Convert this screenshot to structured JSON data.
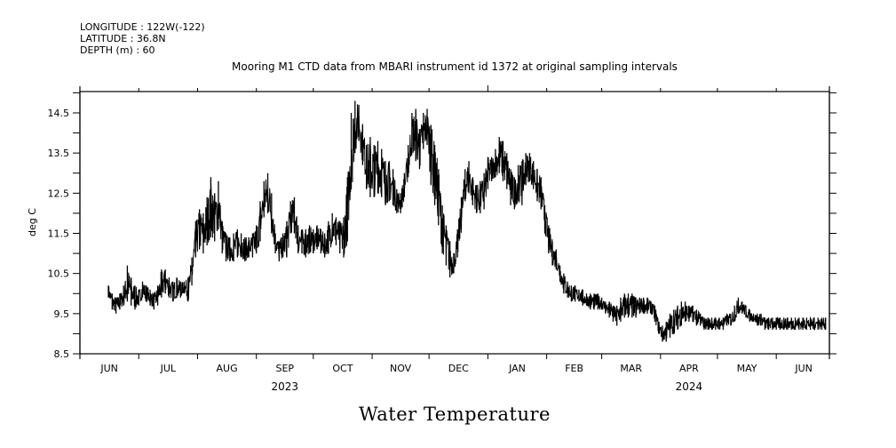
{
  "header": {
    "longitude": "LONGITUDE : 122W(-122)",
    "latitude": "LATITUDE : 36.8N",
    "depth": "DEPTH (m) : 60"
  },
  "chart_data": {
    "type": "line",
    "title": "Mooring M1 CTD data from MBARI instrument id 1372 at original sampling intervals",
    "variable_title": "Water Temperature",
    "xlabel": "",
    "ylabel": "deg C",
    "ylim": [
      8.5,
      15.0
    ],
    "yticks": [
      8.5,
      9.5,
      10.5,
      11.5,
      12.5,
      13.5,
      14.5
    ],
    "ytick_labels": [
      "8.5",
      "9.5",
      "10.5",
      "11.5",
      "12.5",
      "13.5",
      "14.5"
    ],
    "xlim": [
      "2023-05-31",
      "2024-06-29"
    ],
    "x_month_labels": [
      "JUN",
      "JUL",
      "AUG",
      "SEP",
      "OCT",
      "NOV",
      "DEC",
      "JAN",
      "FEB",
      "MAR",
      "APR",
      "MAY",
      "JUN"
    ],
    "x_year_labels": [
      {
        "year": "2023",
        "under": "SEP"
      },
      {
        "year": "2024",
        "under": "APR"
      }
    ],
    "grid": false,
    "line_color": "#000000",
    "series": [
      {
        "name": "Water Temperature",
        "unit": "deg C",
        "x_days_since_2023-06-01": [
          14,
          16,
          18,
          20,
          22,
          24,
          26,
          28,
          30,
          32,
          34,
          36,
          38,
          40,
          42,
          44,
          46,
          48,
          50,
          52,
          54,
          56,
          58,
          60,
          62,
          64,
          66,
          68,
          70,
          72,
          74,
          76,
          78,
          80,
          82,
          84,
          86,
          88,
          90,
          92,
          94,
          96,
          98,
          100,
          102,
          104,
          106,
          108,
          110,
          112,
          114,
          116,
          118,
          120,
          122,
          124,
          126,
          128,
          130,
          132,
          134,
          136,
          138,
          140,
          142,
          144,
          146,
          148,
          150,
          152,
          154,
          156,
          158,
          160,
          162,
          164,
          166,
          168,
          170,
          172,
          174,
          176,
          178,
          180,
          182,
          184,
          186,
          188,
          190,
          192,
          194,
          196,
          198,
          200,
          202,
          204,
          206,
          208,
          210,
          212,
          214,
          216,
          218,
          220,
          222,
          224,
          226,
          228,
          230,
          232,
          234,
          236,
          238,
          240,
          242,
          244,
          246,
          248,
          250,
          252,
          254,
          256,
          258,
          260,
          262,
          264,
          266,
          268,
          270,
          272,
          274,
          276,
          278,
          280,
          282,
          284,
          286,
          288,
          290,
          292,
          294,
          296,
          298,
          300,
          302,
          304,
          306,
          308,
          310,
          312,
          314,
          316,
          318,
          320,
          322,
          324,
          326,
          328,
          330,
          332,
          334,
          336,
          338,
          340,
          342,
          344,
          346,
          348,
          350,
          352,
          354,
          356,
          358,
          360,
          362,
          364,
          366,
          368,
          370,
          372,
          374,
          376,
          378,
          380,
          382,
          384,
          386,
          388,
          390,
          392
        ],
        "y_low": [
          9.9,
          9.6,
          9.5,
          9.6,
          9.7,
          9.8,
          9.7,
          9.6,
          9.7,
          9.9,
          9.8,
          9.7,
          9.6,
          9.7,
          9.9,
          10.0,
          9.9,
          9.8,
          9.9,
          9.9,
          10.0,
          9.8,
          10.2,
          10.9,
          11.1,
          11.0,
          11.2,
          11.4,
          11.3,
          11.6,
          11.0,
          10.8,
          10.8,
          10.8,
          10.9,
          10.9,
          10.8,
          10.9,
          10.9,
          11.0,
          11.3,
          11.9,
          12.0,
          11.5,
          11.0,
          10.8,
          10.9,
          10.9,
          11.5,
          11.5,
          11.0,
          11.0,
          10.9,
          11.0,
          11.0,
          11.1,
          11.0,
          10.9,
          11.0,
          11.3,
          11.2,
          11.0,
          10.9,
          11.3,
          12.6,
          13.5,
          13.8,
          13.2,
          12.6,
          12.4,
          12.4,
          12.5,
          12.4,
          12.2,
          12.3,
          12.2,
          12.0,
          12.0,
          12.4,
          12.9,
          13.5,
          13.3,
          13.1,
          13.6,
          13.7,
          12.7,
          12.2,
          11.7,
          11.0,
          10.7,
          10.4,
          10.5,
          10.9,
          11.6,
          12.3,
          12.5,
          12.2,
          12.0,
          12.0,
          12.1,
          12.6,
          12.8,
          12.9,
          13.0,
          12.8,
          12.6,
          12.2,
          12.1,
          12.3,
          12.2,
          12.7,
          12.8,
          12.6,
          12.3,
          12.1,
          11.5,
          11.0,
          10.7,
          10.6,
          10.3,
          10.0,
          9.9,
          9.8,
          9.8,
          9.8,
          9.7,
          9.7,
          9.6,
          9.6,
          9.6,
          9.6,
          9.5,
          9.4,
          9.3,
          9.2,
          9.3,
          9.4,
          9.4,
          9.4,
          9.4,
          9.5,
          9.5,
          9.5,
          9.5,
          9.3,
          9.0,
          8.8,
          8.8,
          8.9,
          9.0,
          9.1,
          9.2,
          9.3,
          9.3,
          9.3,
          9.2,
          9.2,
          9.1,
          9.1,
          9.1,
          9.1,
          9.1,
          9.1,
          9.2,
          9.2,
          9.3,
          9.5,
          9.5,
          9.4,
          9.3,
          9.3,
          9.2,
          9.2,
          9.1,
          9.1,
          9.1,
          9.1,
          9.1,
          9.1,
          9.1,
          9.1,
          9.1,
          9.1,
          9.1,
          9.1,
          9.1,
          9.1,
          9.1,
          9.1,
          9.1,
          9.1,
          9.1
        ],
        "y_high": [
          10.2,
          10.0,
          9.9,
          10.0,
          10.2,
          10.7,
          10.4,
          10.2,
          10.1,
          10.3,
          10.2,
          10.1,
          10.0,
          10.2,
          10.6,
          10.6,
          10.4,
          10.3,
          10.4,
          10.3,
          10.3,
          10.4,
          10.9,
          11.8,
          12.1,
          12.0,
          12.4,
          12.9,
          12.5,
          12.8,
          11.8,
          11.5,
          11.4,
          11.5,
          11.6,
          11.5,
          11.4,
          11.4,
          11.5,
          11.7,
          12.3,
          12.8,
          13.0,
          12.5,
          11.5,
          11.3,
          11.5,
          11.8,
          12.3,
          12.4,
          11.7,
          11.6,
          11.6,
          11.7,
          11.6,
          11.7,
          11.6,
          11.5,
          11.8,
          12.0,
          11.9,
          11.8,
          11.9,
          12.9,
          14.5,
          14.8,
          14.7,
          14.2,
          13.7,
          13.9,
          13.7,
          13.8,
          13.6,
          13.3,
          13.3,
          13.1,
          12.6,
          12.5,
          13.0,
          13.7,
          14.5,
          14.6,
          14.1,
          14.5,
          14.6,
          14.2,
          13.7,
          13.1,
          12.2,
          11.7,
          11.3,
          11.0,
          11.6,
          12.4,
          13.1,
          13.3,
          12.9,
          12.7,
          12.8,
          13.0,
          13.4,
          13.4,
          13.6,
          13.9,
          13.8,
          13.5,
          13.1,
          12.9,
          13.2,
          13.3,
          13.5,
          13.5,
          13.3,
          13.1,
          12.9,
          12.2,
          11.7,
          11.3,
          11.1,
          10.7,
          10.5,
          10.3,
          10.2,
          10.2,
          10.1,
          10.1,
          10.0,
          10.0,
          10.0,
          10.0,
          9.9,
          9.8,
          9.8,
          9.7,
          9.7,
          9.9,
          10.0,
          10.0,
          10.0,
          9.9,
          9.9,
          9.9,
          9.9,
          9.8,
          9.7,
          9.3,
          9.2,
          9.3,
          9.5,
          9.6,
          9.7,
          9.8,
          9.8,
          9.7,
          9.7,
          9.6,
          9.5,
          9.4,
          9.4,
          9.4,
          9.4,
          9.4,
          9.4,
          9.5,
          9.5,
          9.7,
          9.9,
          9.8,
          9.7,
          9.6,
          9.5,
          9.5,
          9.5,
          9.4,
          9.4,
          9.4,
          9.4,
          9.4,
          9.4,
          9.4,
          9.4,
          9.4,
          9.4,
          9.4,
          9.4,
          9.4,
          9.4,
          9.4,
          9.4,
          9.4,
          9.4,
          9.4
        ]
      }
    ]
  }
}
